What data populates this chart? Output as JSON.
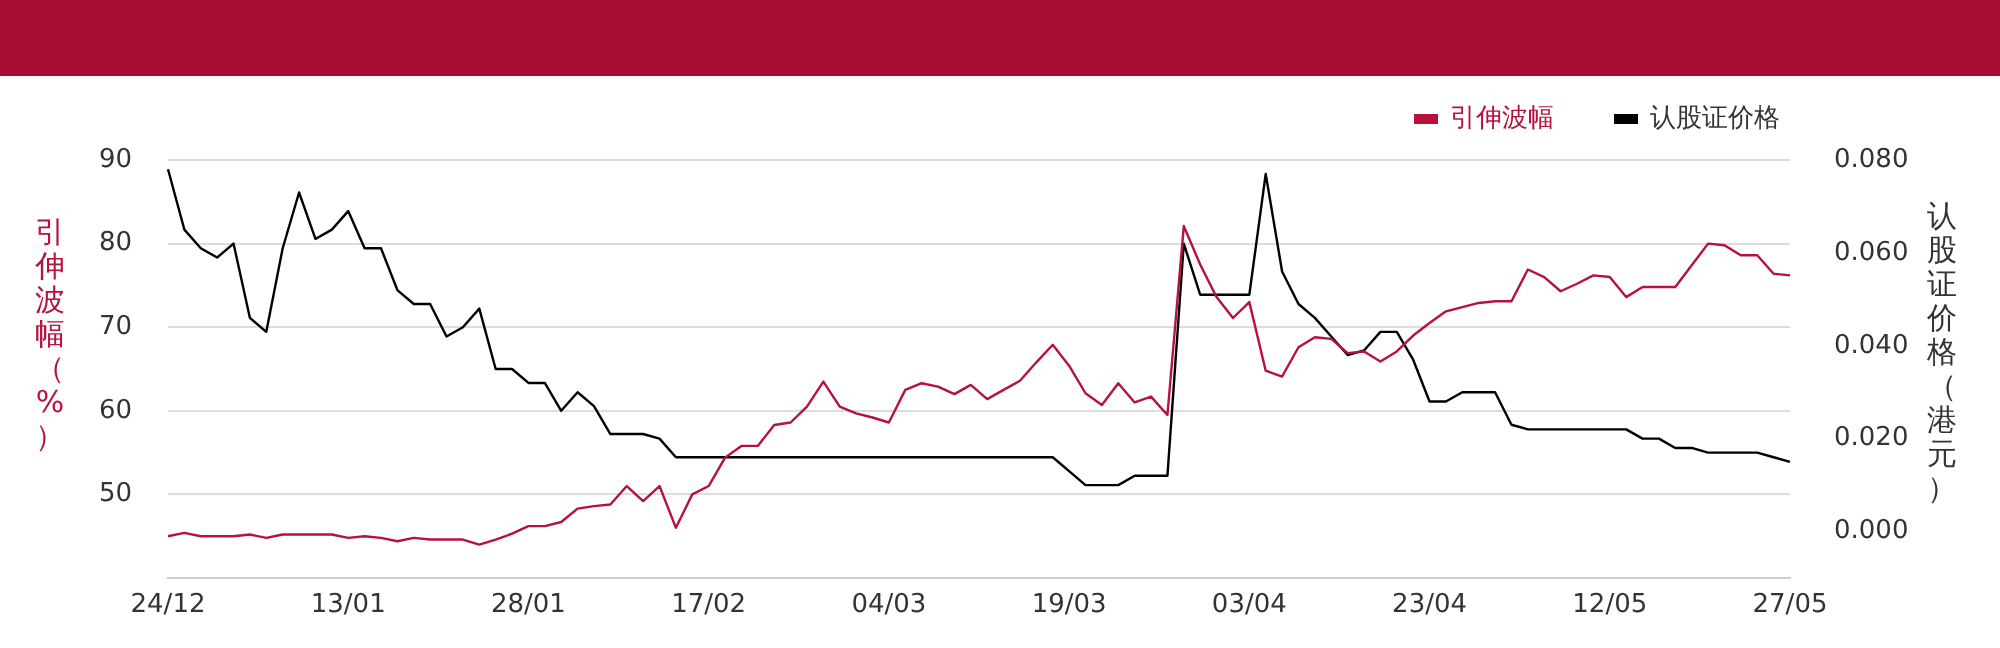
{
  "chart_data": {
    "type": "line",
    "categories": [
      "24/12",
      null,
      null,
      null,
      null,
      null,
      null,
      null,
      null,
      null,
      null,
      "13/01",
      null,
      null,
      null,
      null,
      null,
      null,
      null,
      null,
      null,
      null,
      "28/01",
      null,
      null,
      null,
      null,
      null,
      null,
      null,
      null,
      null,
      null,
      "17/02",
      null,
      null,
      null,
      null,
      null,
      null,
      null,
      null,
      null,
      null,
      "04/03",
      null,
      null,
      null,
      null,
      null,
      null,
      null,
      null,
      null,
      null,
      "19/03",
      null,
      null,
      null,
      null,
      null,
      null,
      null,
      null,
      null,
      null,
      "03/04",
      null,
      null,
      null,
      null,
      null,
      null,
      null,
      null,
      null,
      null,
      "23/04",
      null,
      null,
      null,
      null,
      null,
      null,
      null,
      null,
      null,
      null,
      "12/05",
      null,
      null,
      null,
      null,
      null,
      null,
      null,
      null,
      null,
      null,
      "27/05"
    ],
    "series": [
      {
        "name": "引伸波幅",
        "color": "#b5123e",
        "axis": "y",
        "values": [
          45.0,
          45.4,
          45.0,
          45.0,
          45.0,
          45.2,
          44.8,
          45.2,
          45.2,
          45.2,
          45.2,
          44.8,
          45.0,
          44.8,
          44.4,
          44.8,
          44.6,
          44.6,
          44.6,
          44.0,
          44.6,
          45.3,
          46.2,
          46.2,
          46.7,
          48.3,
          48.6,
          48.8,
          51.0,
          49.2,
          51.0,
          46.0,
          50.0,
          51.0,
          54.4,
          55.8,
          55.8,
          58.3,
          58.6,
          60.5,
          63.5,
          60.5,
          59.7,
          59.2,
          58.6,
          62.5,
          63.3,
          62.9,
          62.0,
          63.1,
          61.4,
          62.5,
          63.6,
          65.8,
          67.9,
          65.4,
          62.1,
          60.7,
          63.3,
          61.0,
          61.7,
          59.5,
          82.1,
          77.5,
          73.6,
          71.1,
          73.0,
          64.8,
          64.1,
          67.6,
          68.8,
          68.6,
          66.9,
          67.1,
          65.9,
          67.1,
          69.0,
          70.5,
          71.9,
          72.4,
          72.9,
          73.1,
          73.1,
          76.9,
          76.0,
          74.3,
          75.2,
          76.2,
          76.0,
          73.6,
          74.8,
          74.8,
          74.8,
          77.4,
          80.0,
          79.8,
          78.6,
          78.6,
          76.4,
          76.2
        ]
      },
      {
        "name": "认股证价格",
        "color": "#000000",
        "axis": "y2",
        "values": [
          0.078,
          0.065,
          0.061,
          0.059,
          0.062,
          0.046,
          0.043,
          0.061,
          0.073,
          0.063,
          0.065,
          0.069,
          0.061,
          0.061,
          0.052,
          0.049,
          0.049,
          0.042,
          0.044,
          0.048,
          0.035,
          0.035,
          0.032,
          0.032,
          0.026,
          0.03,
          0.027,
          0.021,
          0.021,
          0.021,
          0.02,
          0.016,
          0.016,
          0.016,
          0.016,
          0.016,
          0.016,
          0.016,
          0.016,
          0.016,
          0.016,
          0.016,
          0.016,
          0.016,
          0.016,
          0.016,
          0.016,
          0.016,
          0.016,
          0.016,
          0.016,
          0.016,
          0.016,
          0.016,
          0.016,
          0.013,
          0.01,
          0.01,
          0.01,
          0.012,
          0.012,
          0.012,
          0.062,
          0.051,
          0.051,
          0.051,
          0.051,
          0.077,
          0.056,
          0.049,
          0.046,
          0.042,
          0.038,
          0.039,
          0.043,
          0.043,
          0.037,
          0.028,
          0.028,
          0.03,
          0.03,
          0.03,
          0.023,
          0.022,
          0.022,
          0.022,
          0.022,
          0.022,
          0.022,
          0.022,
          0.02,
          0.02,
          0.018,
          0.018,
          0.017,
          0.017,
          0.017,
          0.017,
          0.016,
          0.015
        ]
      }
    ],
    "ylabel": "引伸波幅（%）",
    "y2label": "认股证价格（港元）",
    "ylim": [
      40,
      90
    ],
    "yticks": [
      50,
      60,
      70,
      80,
      90
    ],
    "y2lim": [
      -0.01,
      0.08
    ],
    "y2ticks": [
      {
        "value": 0,
        "label": "0.000"
      },
      {
        "value": 0.02,
        "label": "0.020"
      },
      {
        "value": 0.04,
        "label": "0.040"
      },
      {
        "value": 0.06,
        "label": "0.060"
      },
      {
        "value": 0.08,
        "label": "0.080"
      }
    ],
    "grid": "y",
    "legend": "top right",
    "marker": "none",
    "line_style": "solid"
  }
}
